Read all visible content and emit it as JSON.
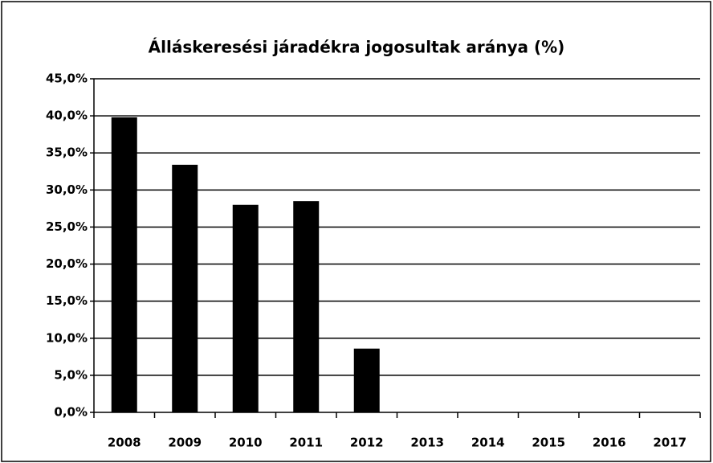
{
  "chart_data": {
    "type": "bar",
    "title": "Álláskeresési járadékra jogosultak aránya (%)",
    "categories": [
      "2008",
      "2009",
      "2010",
      "2011",
      "2012",
      "2013",
      "2014",
      "2015",
      "2016",
      "2017"
    ],
    "values": [
      39.8,
      33.4,
      28.0,
      28.5,
      8.6,
      null,
      null,
      null,
      null,
      null
    ],
    "color": "#000000",
    "ylim": [
      0,
      45
    ],
    "yticks": [
      {
        "value": 0,
        "label": "0,0%"
      },
      {
        "value": 5,
        "label": "5,0%"
      },
      {
        "value": 10,
        "label": "10,0%"
      },
      {
        "value": 15,
        "label": "15,0%"
      },
      {
        "value": 20,
        "label": "20,0%"
      },
      {
        "value": 25,
        "label": "25,0%"
      },
      {
        "value": 30,
        "label": "30,0%"
      },
      {
        "value": 35,
        "label": "35,0%"
      },
      {
        "value": 40,
        "label": "40,0%"
      },
      {
        "value": 45,
        "label": "45,0%"
      }
    ],
    "grid": true
  }
}
